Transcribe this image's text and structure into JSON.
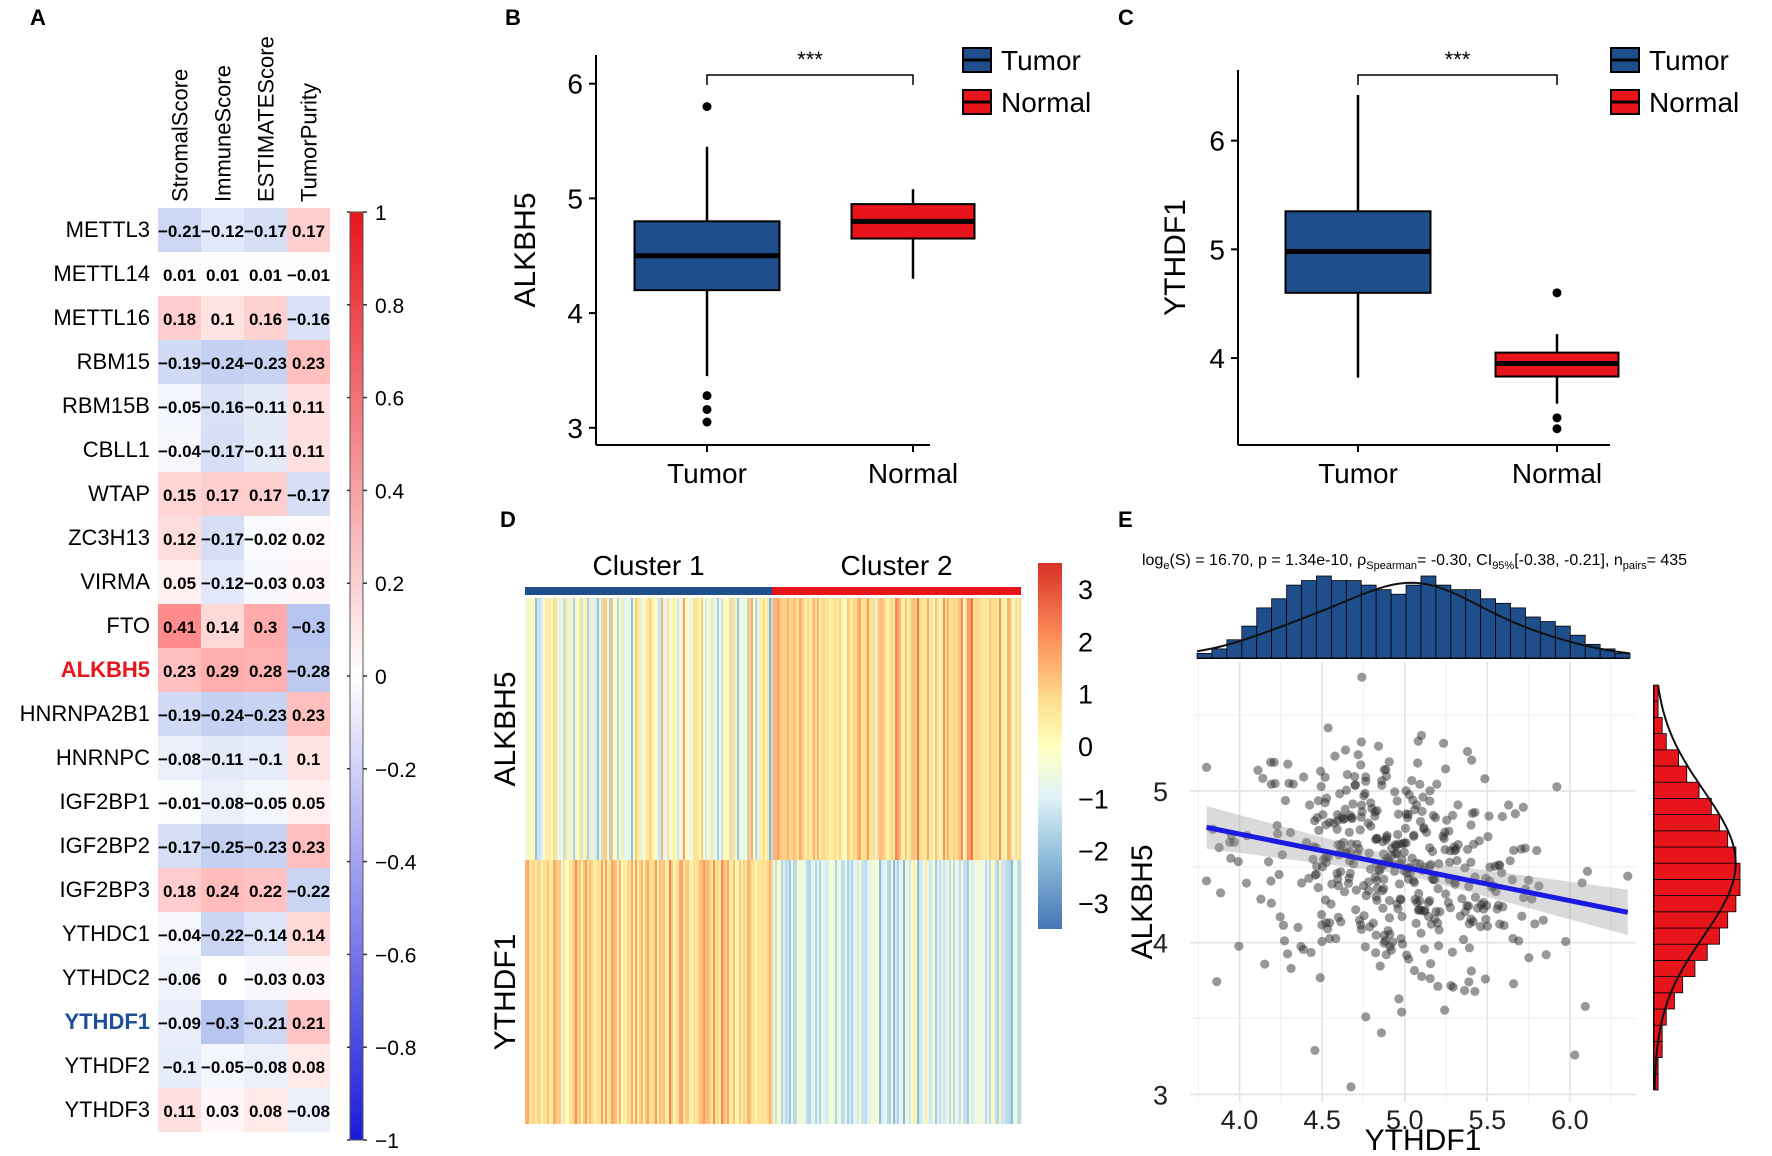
{
  "panels": {
    "a": "A",
    "b": "B",
    "c": "C",
    "d": "D",
    "e": "E"
  },
  "chart_data": [
    {
      "id": "A",
      "type": "heatmap",
      "value_range": [
        -1,
        1
      ],
      "columns": [
        "StromalScore",
        "ImmuneScore",
        "ESTIMATEScore",
        "TumorPurity"
      ],
      "rows": [
        "METTL3",
        "METTL14",
        "METTL16",
        "RBM15",
        "RBM15B",
        "CBLL1",
        "WTAP",
        "ZC3H13",
        "VIRMA",
        "FTO",
        "ALKBH5",
        "HNRNPA2B1",
        "HNRNPC",
        "IGF2BP1",
        "IGF2BP2",
        "IGF2BP3",
        "YTHDC1",
        "YTHDC2",
        "YTHDF1",
        "YTHDF2",
        "YTHDF3"
      ],
      "highlight_rows": {
        "ALKBH5": "#e8141b",
        "YTHDF1": "#1f4e9a"
      },
      "values": [
        [
          -0.21,
          -0.12,
          -0.17,
          0.17
        ],
        [
          0.01,
          0.01,
          0.01,
          -0.01
        ],
        [
          0.18,
          0.1,
          0.16,
          -0.16
        ],
        [
          -0.19,
          -0.24,
          -0.23,
          0.23
        ],
        [
          -0.05,
          -0.16,
          -0.11,
          0.11
        ],
        [
          -0.04,
          -0.17,
          -0.11,
          0.11
        ],
        [
          0.15,
          0.17,
          0.17,
          -0.17
        ],
        [
          0.12,
          -0.17,
          -0.02,
          0.02
        ],
        [
          0.05,
          -0.12,
          -0.03,
          0.03
        ],
        [
          0.41,
          0.14,
          0.3,
          -0.3
        ],
        [
          0.23,
          0.29,
          0.28,
          -0.28
        ],
        [
          -0.19,
          -0.24,
          -0.23,
          0.23
        ],
        [
          -0.08,
          -0.11,
          -0.1,
          0.1
        ],
        [
          -0.01,
          -0.08,
          -0.05,
          0.05
        ],
        [
          -0.17,
          -0.25,
          -0.23,
          0.23
        ],
        [
          0.18,
          0.24,
          0.22,
          -0.22
        ],
        [
          -0.04,
          -0.22,
          -0.14,
          0.14
        ],
        [
          -0.06,
          0,
          -0.03,
          0.03
        ],
        [
          -0.09,
          -0.3,
          -0.21,
          0.21
        ],
        [
          -0.1,
          -0.05,
          -0.08,
          0.08
        ],
        [
          0.11,
          0.03,
          0.08,
          -0.08
        ]
      ],
      "labels": [
        [
          "−0.21",
          "−0.12",
          "−0.17",
          "0.17"
        ],
        [
          "0.01",
          "0.01",
          "0.01",
          "−0.01"
        ],
        [
          "0.18",
          "0.1",
          "0.16",
          "−0.16"
        ],
        [
          "−0.19",
          "−0.24",
          "−0.23",
          "0.23"
        ],
        [
          "−0.05",
          "−0.16",
          "−0.11",
          "0.11"
        ],
        [
          "−0.04",
          "−0.17",
          "−0.11",
          "0.11"
        ],
        [
          "0.15",
          "0.17",
          "0.17",
          "−0.17"
        ],
        [
          "0.12",
          "−0.17",
          "−0.02",
          "0.02"
        ],
        [
          "0.05",
          "−0.12",
          "−0.03",
          "0.03"
        ],
        [
          "0.41",
          "0.14",
          "0.3",
          "−0.3"
        ],
        [
          "0.23",
          "0.29",
          "0.28",
          "−0.28"
        ],
        [
          "−0.19",
          "−0.24",
          "−0.23",
          "0.23"
        ],
        [
          "−0.08",
          "−0.11",
          "−0.1",
          "0.1"
        ],
        [
          "−0.01",
          "−0.08",
          "−0.05",
          "0.05"
        ],
        [
          "−0.17",
          "−0.25",
          "−0.23",
          "0.23"
        ],
        [
          "0.18",
          "0.24",
          "0.22",
          "−0.22"
        ],
        [
          "−0.04",
          "−0.22",
          "−0.14",
          "0.14"
        ],
        [
          "−0.06",
          "0",
          "−0.03",
          "0.03"
        ],
        [
          "−0.09",
          "−0.3",
          "−0.21",
          "0.21"
        ],
        [
          "−0.1",
          "−0.05",
          "−0.08",
          "0.08"
        ],
        [
          "0.11",
          "0.03",
          "0.08",
          "−0.08"
        ]
      ],
      "colorbar": {
        "ticks": [
          1,
          0.8,
          0.6,
          0.4,
          0.2,
          0,
          -0.2,
          -0.4,
          -0.6,
          -0.8,
          -1
        ],
        "tick_labels": [
          "1",
          "0.8",
          "0.6",
          "0.4",
          "0.2",
          "0",
          "−0.2",
          "−0.4",
          "−0.6",
          "−0.8",
          "−1"
        ],
        "high_color": "#e8141b",
        "low_color": "#1a1adb",
        "mid_color": "#ffffff"
      }
    },
    {
      "id": "B",
      "type": "box",
      "ylabel": "ALKBH5",
      "ylim": [
        2.85,
        6.25
      ],
      "yticks": [
        3,
        4,
        5,
        6
      ],
      "categories": [
        "Tumor",
        "Normal"
      ],
      "colors": {
        "Tumor": "#1f4e8c",
        "Normal": "#e8141b"
      },
      "boxes": [
        {
          "name": "Tumor",
          "q1": 4.2,
          "median": 4.5,
          "q3": 4.8,
          "whisker_low": 3.45,
          "whisker_high": 5.45,
          "outliers": [
            5.8,
            3.28,
            3.16,
            3.05
          ]
        },
        {
          "name": "Normal",
          "q1": 4.65,
          "median": 4.8,
          "q3": 4.95,
          "whisker_low": 4.3,
          "whisker_high": 5.08,
          "outliers": []
        }
      ],
      "significance": "***",
      "legend": [
        "Tumor",
        "Normal"
      ]
    },
    {
      "id": "C",
      "type": "box",
      "ylabel": "YTHDF1",
      "ylim": [
        3.2,
        6.65
      ],
      "yticks": [
        4,
        5,
        6
      ],
      "categories": [
        "Tumor",
        "Normal"
      ],
      "colors": {
        "Tumor": "#1f4e8c",
        "Normal": "#e8141b"
      },
      "boxes": [
        {
          "name": "Tumor",
          "q1": 4.6,
          "median": 4.98,
          "q3": 5.35,
          "whisker_low": 3.82,
          "whisker_high": 6.42,
          "outliers": []
        },
        {
          "name": "Normal",
          "q1": 3.83,
          "median": 3.95,
          "q3": 4.05,
          "whisker_low": 3.58,
          "whisker_high": 4.22,
          "outliers": [
            4.6,
            3.45,
            3.35
          ]
        }
      ],
      "significance": "***",
      "legend": [
        "Tumor",
        "Normal"
      ]
    },
    {
      "id": "D",
      "type": "heatmap",
      "clusters": [
        "Cluster 1",
        "Cluster 2"
      ],
      "cluster_colors": [
        "#1f4e8c",
        "#e8141b"
      ],
      "rows": [
        "ALKBH5",
        "YTHDF1"
      ],
      "value_range": [
        -3.5,
        3.5
      ],
      "colorbar": {
        "ticks": [
          3,
          2,
          1,
          0,
          -1,
          -2,
          -3
        ],
        "tick_labels": [
          "3",
          "2",
          "1",
          "0",
          "−1",
          "−2",
          "−3"
        ]
      }
    },
    {
      "id": "E",
      "type": "scatter",
      "subtitle": "logₑ(S) = 16.70, p = 1.34e-10, ρSpearman = -0.30, CI95%[-0.38, -0.21], npairs = 435",
      "stats": {
        "prefix": "log",
        "sub_e": "e",
        "s_part": "(S) = 16.70, p = 1.34e-10, ρ",
        "sub_spearman": "Spearman",
        "rho": "= -0.30, CI",
        "sub_ci": "95%",
        "ci": "[-0.38, -0.21], n",
        "sub_pairs": "pairs",
        "n": "= 435"
      },
      "xlabel": "YTHDF1",
      "ylabel": "ALKBH5",
      "xlim": [
        3.7,
        6.4
      ],
      "ylim": [
        2.95,
        5.85
      ],
      "xticks": [
        4.0,
        4.5,
        5.0,
        5.5,
        6.0
      ],
      "xtick_labels": [
        "4.0",
        "4.5",
        "5.0",
        "5.5",
        "6.0"
      ],
      "yticks": [
        3,
        4,
        5
      ],
      "ytick_labels": [
        "3",
        "4",
        "5"
      ],
      "fit": {
        "x": [
          3.8,
          6.35
        ],
        "y": [
          4.76,
          4.2
        ]
      },
      "n_points": 435,
      "x_hist_color": "#1f4e8c",
      "y_hist_color": "#e8141b",
      "fit_color": "#1a1ae0"
    }
  ]
}
